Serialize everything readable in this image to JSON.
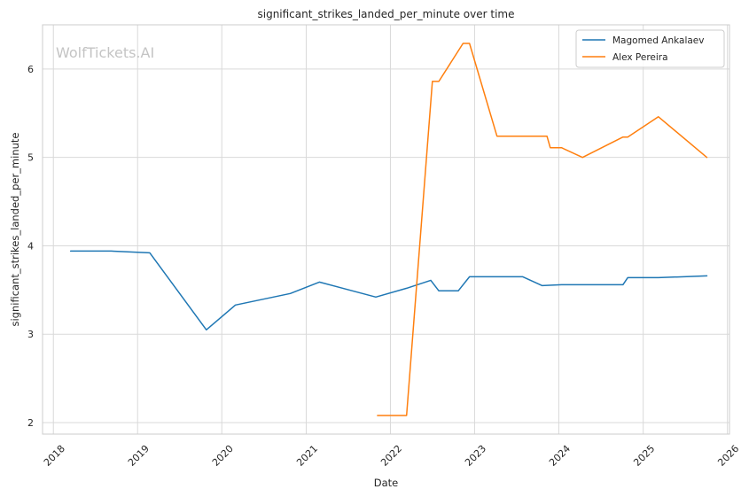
{
  "watermark": "WolfTickets.AI",
  "chart_data": {
    "type": "line",
    "title": "significant_strikes_landed_per_minute over time",
    "xlabel": "Date",
    "ylabel": "significant_strikes_landed_per_minute",
    "x_ticks": [
      "2018",
      "2019",
      "2020",
      "2021",
      "2022",
      "2023",
      "2024",
      "2025",
      "2026"
    ],
    "y_ticks": [
      "2",
      "3",
      "4",
      "5",
      "6"
    ],
    "xlim": [
      "2017-11-15",
      "2026-01-10"
    ],
    "ylim": [
      1.87,
      6.5
    ],
    "grid": true,
    "legend_position": "top-right",
    "series": [
      {
        "name": "Magomed Ankalaev",
        "color": "#1f77b4",
        "points": [
          [
            "2018-03-17",
            3.94
          ],
          [
            "2018-09-08",
            3.94
          ],
          [
            "2019-02-23",
            3.92
          ],
          [
            "2019-10-26",
            3.05
          ],
          [
            "2020-02-29",
            3.33
          ],
          [
            "2020-10-24",
            3.46
          ],
          [
            "2021-02-27",
            3.59
          ],
          [
            "2021-10-30",
            3.42
          ],
          [
            "2022-03-12",
            3.52
          ],
          [
            "2022-06-25",
            3.61
          ],
          [
            "2022-07-30",
            3.49
          ],
          [
            "2022-10-22",
            3.49
          ],
          [
            "2022-12-10",
            3.65
          ],
          [
            "2023-07-29",
            3.65
          ],
          [
            "2023-10-21",
            3.55
          ],
          [
            "2024-01-13",
            3.56
          ],
          [
            "2024-10-05",
            3.56
          ],
          [
            "2024-10-26",
            3.64
          ],
          [
            "2025-03-08",
            3.64
          ],
          [
            "2025-10-04",
            3.66
          ]
        ]
      },
      {
        "name": "Alex Pereira",
        "color": "#ff7f0e",
        "points": [
          [
            "2021-11-06",
            2.08
          ],
          [
            "2022-03-12",
            2.08
          ],
          [
            "2022-07-02",
            5.86
          ],
          [
            "2022-07-30",
            5.86
          ],
          [
            "2022-11-12",
            6.29
          ],
          [
            "2022-12-10",
            6.29
          ],
          [
            "2023-04-08",
            5.24
          ],
          [
            "2023-11-11",
            5.24
          ],
          [
            "2023-11-25",
            5.11
          ],
          [
            "2024-01-13",
            5.11
          ],
          [
            "2024-04-13",
            5.0
          ],
          [
            "2024-10-05",
            5.23
          ],
          [
            "2024-10-26",
            5.23
          ],
          [
            "2025-03-08",
            5.46
          ],
          [
            "2025-10-04",
            5.0
          ]
        ]
      }
    ]
  }
}
